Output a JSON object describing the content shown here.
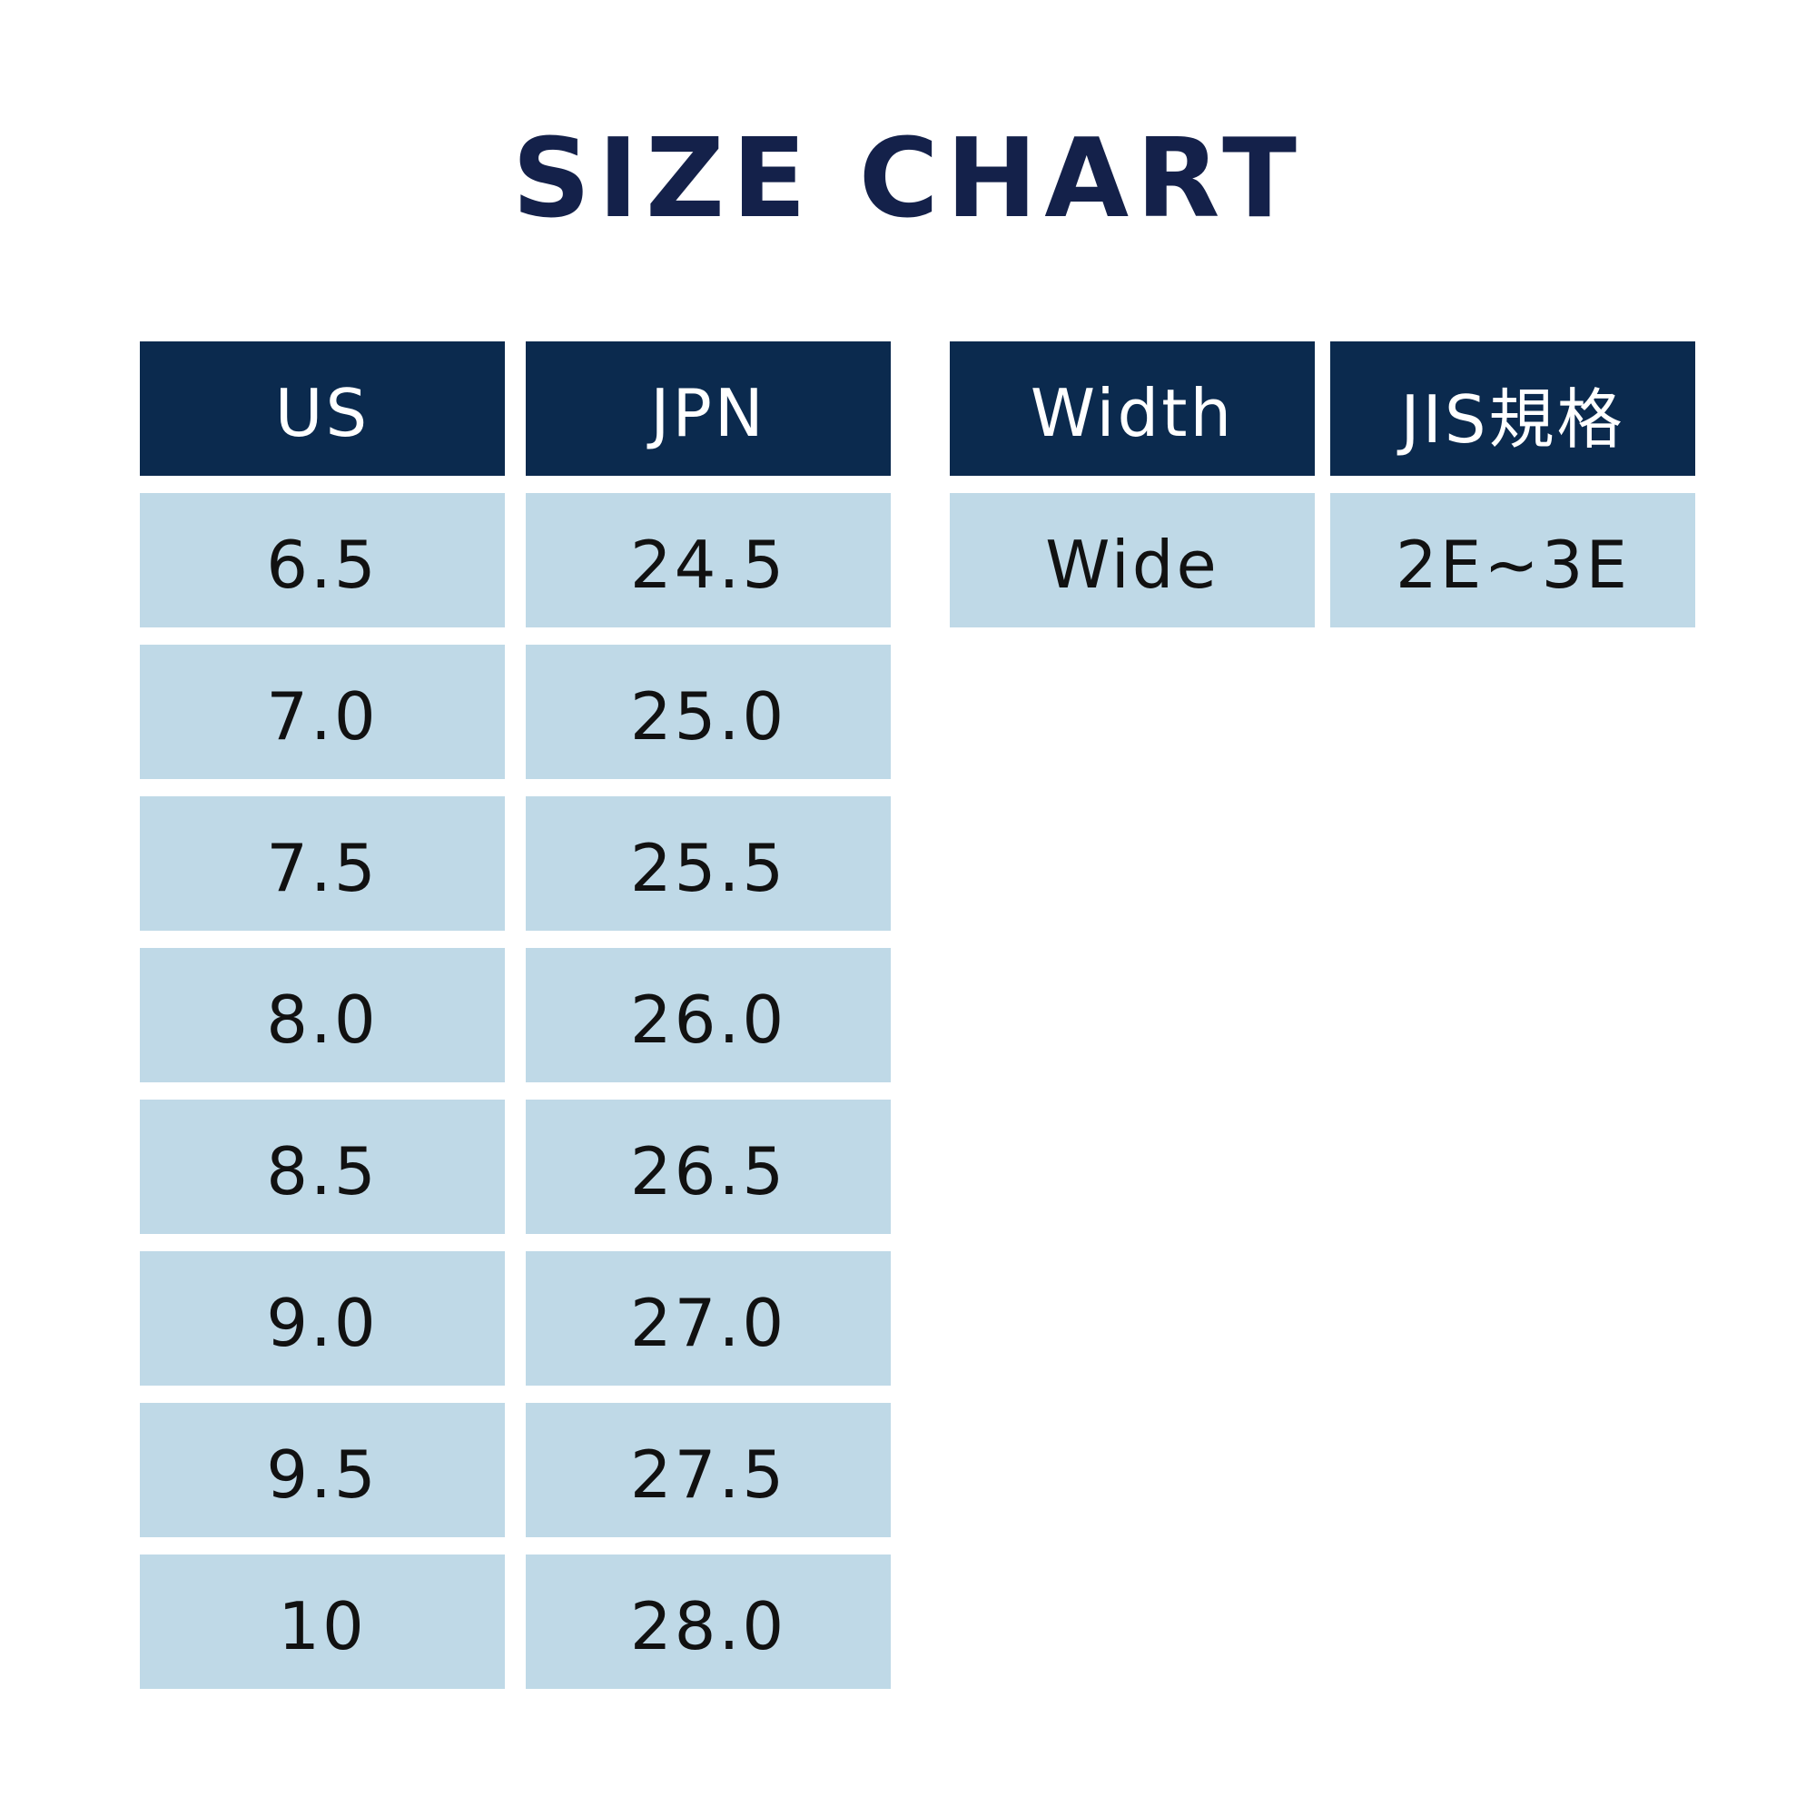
{
  "title": "SIZE CHART",
  "colors": {
    "title": "#14214a",
    "header_bg": "#0b2a4e",
    "header_text": "#ffffff",
    "cell_bg": "#bfd9e7",
    "cell_text": "#111111"
  },
  "size_table": {
    "headers": [
      "US",
      "JPN"
    ],
    "rows": [
      [
        "6.5",
        "24.5"
      ],
      [
        "7.0",
        "25.0"
      ],
      [
        "7.5",
        "25.5"
      ],
      [
        "8.0",
        "26.0"
      ],
      [
        "8.5",
        "26.5"
      ],
      [
        "9.0",
        "27.0"
      ],
      [
        "9.5",
        "27.5"
      ],
      [
        "10",
        "28.0"
      ]
    ]
  },
  "width_table": {
    "headers": [
      "Width",
      "JIS規格"
    ],
    "rows": [
      [
        "Wide",
        "2E~3E"
      ]
    ]
  }
}
